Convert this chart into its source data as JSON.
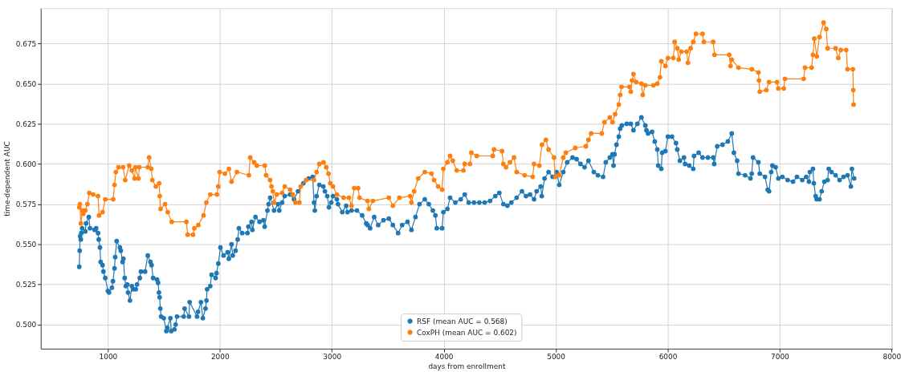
{
  "chart_data": {
    "type": "line",
    "xlabel": "days from enrollment",
    "ylabel": "time-dependent AUC",
    "xlim": [
      400,
      8005
    ],
    "xticks": [
      1000,
      2000,
      3000,
      4000,
      5000,
      6000,
      7000,
      8000
    ],
    "ylim": [
      0.485,
      0.697
    ],
    "yticks": [
      {
        "value": 0.5,
        "label": "0.500"
      },
      {
        "value": 0.525,
        "label": "0.525"
      },
      {
        "value": 0.55,
        "label": "0.550"
      },
      {
        "value": 0.575,
        "label": "0.575"
      },
      {
        "value": 0.6,
        "label": "0.600"
      },
      {
        "value": 0.625,
        "label": "0.625"
      },
      {
        "value": 0.65,
        "label": "0.650"
      },
      {
        "value": 0.675,
        "label": "0.675"
      }
    ],
    "grid": true,
    "legend": "bottom",
    "marker": "circle",
    "line_style": "solid",
    "series": [
      {
        "name": "RSF (mean AUC = 0.568)",
        "color": "#1f77b4",
        "x": [
          744,
          748,
          752,
          758,
          762,
          770,
          798,
          805,
          829,
          840,
          881,
          895,
          912,
          918,
          929,
          935,
          952,
          960,
          976,
          1000,
          1010,
          1036,
          1045,
          1059,
          1065,
          1078,
          1107,
          1115,
          1131,
          1138,
          1150,
          1160,
          1173,
          1180,
          1197,
          1214,
          1225,
          1249,
          1260,
          1285,
          1295,
          1332,
          1356,
          1380,
          1390,
          1404,
          1439,
          1448,
          1456,
          1462,
          1468,
          1475,
          1499,
          1522,
          1530,
          1558,
          1565,
          1594,
          1605,
          1617,
          1677,
          1685,
          1724,
          1730,
          1796,
          1805,
          1831,
          1848,
          1872,
          1880,
          1886,
          1914,
          1926,
          1962,
          1970,
          1986,
          2005,
          2033,
          2069,
          2080,
          2104,
          2115,
          2140,
          2159,
          2170,
          2199,
          2247,
          2255,
          2283,
          2290,
          2318,
          2354,
          2389,
          2400,
          2425,
          2435,
          2449,
          2484,
          2520,
          2530,
          2556,
          2579,
          2627,
          2662,
          2698,
          2746,
          2793,
          2829,
          2841,
          2848,
          2864,
          2888,
          2924,
          2938,
          2959,
          2974,
          2995,
          3010,
          3045,
          3055,
          3093,
          3128,
          3140,
          3176,
          3224,
          3271,
          3307,
          3320,
          3342,
          3378,
          3414,
          3461,
          3509,
          3545,
          3592,
          3628,
          3676,
          3711,
          3747,
          3783,
          3830,
          3866,
          3902,
          3925,
          3937,
          3985,
          3996,
          4032,
          4056,
          4103,
          4151,
          4187,
          4222,
          4270,
          4317,
          4365,
          4413,
          4460,
          4496,
          4532,
          4568,
          4603,
          4651,
          4698,
          4734,
          4770,
          4806,
          4829,
          4865,
          4875,
          4900,
          4936,
          4972,
          5007,
          5031,
          5067,
          5102,
          5150,
          5186,
          5221,
          5257,
          5292,
          5340,
          5376,
          5423,
          5447,
          5483,
          5507,
          5516,
          5525,
          5542,
          5563,
          5575,
          5590,
          5634,
          5670,
          5694,
          5729,
          5765,
          5800,
          5810,
          5824,
          5860,
          5884,
          5907,
          5915,
          5943,
          5950,
          5979,
          6002,
          6038,
          6074,
          6085,
          6109,
          6145,
          6155,
          6192,
          6228,
          6235,
          6276,
          6311,
          6359,
          6406,
          6415,
          6442,
          6489,
          6537,
          6572,
          6591,
          6620,
          6632,
          6691,
          6739,
          6750,
          6762,
          6810,
          6822,
          6869,
          6893,
          6905,
          6924,
          6935,
          6964,
          6988,
          7024,
          7071,
          7119,
          7154,
          7202,
          7237,
          7261,
          7270,
          7297,
          7305,
          7321,
          7330,
          7356,
          7375,
          7399,
          7428,
          7438,
          7463,
          7499,
          7535,
          7570,
          7606,
          7636,
          7645,
          7665
        ],
        "values": [
          0.536,
          0.546,
          0.555,
          0.553,
          0.557,
          0.56,
          0.558,
          0.563,
          0.567,
          0.56,
          0.559,
          0.56,
          0.557,
          0.553,
          0.548,
          0.539,
          0.537,
          0.533,
          0.529,
          0.521,
          0.52,
          0.523,
          0.527,
          0.535,
          0.542,
          0.552,
          0.548,
          0.546,
          0.539,
          0.541,
          0.529,
          0.524,
          0.525,
          0.52,
          0.515,
          0.524,
          0.522,
          0.522,
          0.525,
          0.529,
          0.533,
          0.533,
          0.543,
          0.539,
          0.537,
          0.529,
          0.528,
          0.526,
          0.52,
          0.517,
          0.51,
          0.505,
          0.504,
          0.496,
          0.498,
          0.504,
          0.496,
          0.497,
          0.5,
          0.505,
          0.505,
          0.51,
          0.505,
          0.514,
          0.505,
          0.508,
          0.514,
          0.504,
          0.51,
          0.515,
          0.522,
          0.524,
          0.531,
          0.529,
          0.532,
          0.538,
          0.548,
          0.543,
          0.545,
          0.541,
          0.55,
          0.543,
          0.546,
          0.553,
          0.56,
          0.557,
          0.557,
          0.561,
          0.564,
          0.559,
          0.567,
          0.564,
          0.565,
          0.561,
          0.571,
          0.575,
          0.579,
          0.571,
          0.575,
          0.571,
          0.576,
          0.58,
          0.581,
          0.578,
          0.583,
          0.588,
          0.591,
          0.592,
          0.576,
          0.571,
          0.58,
          0.587,
          0.586,
          0.583,
          0.58,
          0.573,
          0.576,
          0.58,
          0.578,
          0.575,
          0.57,
          0.574,
          0.57,
          0.571,
          0.571,
          0.568,
          0.563,
          0.562,
          0.56,
          0.567,
          0.562,
          0.565,
          0.566,
          0.562,
          0.557,
          0.562,
          0.564,
          0.559,
          0.567,
          0.575,
          0.578,
          0.575,
          0.571,
          0.568,
          0.56,
          0.56,
          0.57,
          0.572,
          0.579,
          0.576,
          0.578,
          0.581,
          0.576,
          0.576,
          0.576,
          0.576,
          0.577,
          0.58,
          0.582,
          0.575,
          0.574,
          0.576,
          0.579,
          0.583,
          0.58,
          0.581,
          0.578,
          0.583,
          0.586,
          0.58,
          0.591,
          0.595,
          0.592,
          0.595,
          0.587,
          0.595,
          0.601,
          0.604,
          0.603,
          0.6,
          0.598,
          0.602,
          0.595,
          0.593,
          0.592,
          0.601,
          0.604,
          0.606,
          0.599,
          0.606,
          0.612,
          0.617,
          0.622,
          0.624,
          0.625,
          0.625,
          0.621,
          0.625,
          0.629,
          0.624,
          0.621,
          0.619,
          0.62,
          0.614,
          0.609,
          0.599,
          0.597,
          0.607,
          0.608,
          0.617,
          0.617,
          0.613,
          0.609,
          0.602,
          0.604,
          0.6,
          0.599,
          0.597,
          0.605,
          0.607,
          0.604,
          0.604,
          0.604,
          0.6,
          0.611,
          0.612,
          0.614,
          0.619,
          0.607,
          0.602,
          0.594,
          0.593,
          0.591,
          0.594,
          0.604,
          0.601,
          0.594,
          0.592,
          0.584,
          0.583,
          0.595,
          0.599,
          0.598,
          0.591,
          0.592,
          0.59,
          0.589,
          0.592,
          0.59,
          0.592,
          0.589,
          0.595,
          0.597,
          0.588,
          0.58,
          0.578,
          0.578,
          0.583,
          0.589,
          0.59,
          0.597,
          0.595,
          0.593,
          0.59,
          0.592,
          0.593,
          0.586,
          0.597,
          0.591
        ]
      },
      {
        "name": "CoxPH (mean AUC = 0.602)",
        "color": "#ff7f0e",
        "x": [
          744,
          750,
          758,
          774,
          780,
          798,
          817,
          834,
          869,
          912,
          921,
          952,
          976,
          1047,
          1059,
          1071,
          1095,
          1135,
          1154,
          1190,
          1214,
          1238,
          1245,
          1273,
          1280,
          1356,
          1368,
          1387,
          1397,
          1428,
          1458,
          1463,
          1470,
          1511,
          1534,
          1570,
          1701,
          1712,
          1760,
          1772,
          1808,
          1855,
          1879,
          1914,
          1974,
          1986,
          1998,
          2045,
          2081,
          2104,
          2152,
          2259,
          2271,
          2306,
          2330,
          2401,
          2413,
          2449,
          2461,
          2473,
          2484,
          2508,
          2556,
          2579,
          2627,
          2651,
          2675,
          2710,
          2722,
          2770,
          2841,
          2864,
          2888,
          2926,
          2950,
          2970,
          2986,
          3010,
          3045,
          3105,
          3152,
          3176,
          3200,
          3235,
          3247,
          3319,
          3330,
          3366,
          3509,
          3545,
          3604,
          3699,
          3711,
          3735,
          3771,
          3830,
          3890,
          3913,
          3949,
          3985,
          3996,
          4032,
          4056,
          4080,
          4115,
          4175,
          4187,
          4234,
          4246,
          4294,
          4437,
          4449,
          4520,
          4532,
          4556,
          4591,
          4627,
          4651,
          4722,
          4794,
          4806,
          4853,
          4877,
          4912,
          4936,
          4984,
          4996,
          5031,
          5067,
          5090,
          5174,
          5269,
          5292,
          5316,
          5411,
          5435,
          5483,
          5507,
          5530,
          5563,
          5575,
          5587,
          5658,
          5670,
          5682,
          5694,
          5718,
          5765,
          5777,
          5800,
          5872,
          5907,
          5931,
          5943,
          5979,
          6002,
          6050,
          6062,
          6086,
          6098,
          6121,
          6169,
          6181,
          6204,
          6228,
          6252,
          6311,
          6323,
          6406,
          6418,
          6549,
          6561,
          6572,
          6632,
          6751,
          6810,
          6815,
          6822,
          6881,
          6905,
          6976,
          6988,
          7036,
          7047,
          7214,
          7226,
          7285,
          7297,
          7309,
          7332,
          7356,
          7392,
          7416,
          7428,
          7499,
          7523,
          7546,
          7594,
          7606,
          7654,
          7657,
          7660
        ],
        "values": [
          0.573,
          0.575,
          0.563,
          0.571,
          0.569,
          0.571,
          0.575,
          0.582,
          0.581,
          0.58,
          0.568,
          0.57,
          0.578,
          0.578,
          0.587,
          0.595,
          0.598,
          0.598,
          0.59,
          0.599,
          0.596,
          0.591,
          0.598,
          0.591,
          0.598,
          0.598,
          0.604,
          0.597,
          0.59,
          0.586,
          0.588,
          0.58,
          0.572,
          0.575,
          0.57,
          0.564,
          0.564,
          0.556,
          0.556,
          0.56,
          0.562,
          0.568,
          0.576,
          0.581,
          0.581,
          0.586,
          0.595,
          0.594,
          0.597,
          0.589,
          0.595,
          0.593,
          0.604,
          0.601,
          0.599,
          0.599,
          0.593,
          0.59,
          0.586,
          0.583,
          0.576,
          0.581,
          0.582,
          0.586,
          0.584,
          0.581,
          0.576,
          0.576,
          0.586,
          0.59,
          0.59,
          0.595,
          0.6,
          0.601,
          0.598,
          0.594,
          0.588,
          0.586,
          0.581,
          0.579,
          0.579,
          0.574,
          0.585,
          0.585,
          0.579,
          0.577,
          0.572,
          0.577,
          0.579,
          0.574,
          0.579,
          0.58,
          0.576,
          0.583,
          0.591,
          0.595,
          0.594,
          0.59,
          0.586,
          0.584,
          0.597,
          0.601,
          0.605,
          0.602,
          0.596,
          0.596,
          0.6,
          0.6,
          0.607,
          0.605,
          0.605,
          0.609,
          0.608,
          0.6,
          0.598,
          0.601,
          0.604,
          0.595,
          0.593,
          0.592,
          0.6,
          0.599,
          0.612,
          0.615,
          0.609,
          0.604,
          0.592,
          0.593,
          0.604,
          0.607,
          0.61,
          0.611,
          0.615,
          0.619,
          0.619,
          0.626,
          0.629,
          0.626,
          0.631,
          0.637,
          0.643,
          0.648,
          0.648,
          0.645,
          0.652,
          0.656,
          0.651,
          0.65,
          0.643,
          0.649,
          0.649,
          0.65,
          0.654,
          0.664,
          0.661,
          0.666,
          0.666,
          0.676,
          0.672,
          0.665,
          0.67,
          0.67,
          0.663,
          0.672,
          0.676,
          0.681,
          0.681,
          0.676,
          0.676,
          0.668,
          0.668,
          0.661,
          0.665,
          0.66,
          0.659,
          0.657,
          0.652,
          0.645,
          0.646,
          0.651,
          0.651,
          0.647,
          0.647,
          0.653,
          0.653,
          0.66,
          0.66,
          0.668,
          0.678,
          0.667,
          0.679,
          0.688,
          0.684,
          0.672,
          0.672,
          0.666,
          0.671,
          0.671,
          0.659,
          0.659,
          0.646,
          0.637
        ]
      }
    ]
  }
}
